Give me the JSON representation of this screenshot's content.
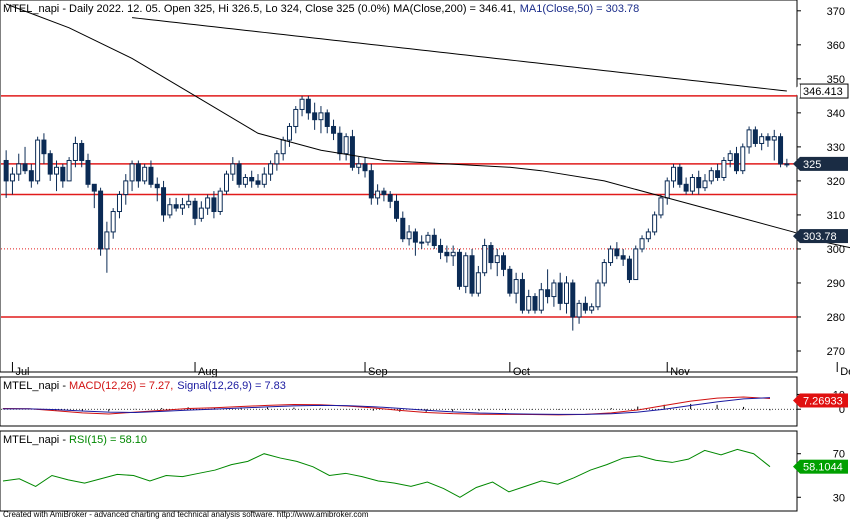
{
  "price_pane": {
    "symbol": "MTEL_napi",
    "info_prefix": " - Daily 2022. 12. 05. Open 325, Hi 326.5, Lo 324, Close 325 (0.0%) ",
    "ma200_text": "MA(Close,200) = 346.41,",
    "ma50_text": "MA1(Close,50) = 303.78",
    "y_ticks": [
      270,
      280,
      290,
      300,
      310,
      320,
      330,
      340,
      350,
      360,
      370
    ],
    "last_close_label": "325",
    "ma50_label": "303.78",
    "level_label": "346.413"
  },
  "macd_pane": {
    "symbol": "MTEL_napi",
    "macd_text": "MACD(12,26) = 7.27,",
    "signal_text": "Signal(12,26,9) = 7.83",
    "y_ticks": [
      0,
      10
    ],
    "value_label": "7.26933"
  },
  "rsi_pane": {
    "symbol": "MTEL_napi",
    "rsi_text": "RSI(15) = 58.10",
    "y_ticks": [
      30,
      70
    ],
    "value_label": "58.1044"
  },
  "x_axis_labels": [
    "Jul",
    "Aug",
    "Sep",
    "Oct",
    "Nov",
    "Dec"
  ],
  "footer": "Created with AmiBroker - advanced charting and technical analysis software. http://www.amibroker.com",
  "colors": {
    "up": "#ffffff",
    "down": "#0b2b55",
    "ma": "#000000",
    "level": "#e11b1b",
    "macd": "#d01010",
    "signal": "#1a1aa0",
    "rsi": "#008800",
    "label_red": "#e01010",
    "label_green": "#00a000",
    "label_dark": "#1a2c44"
  },
  "chart_data": [
    {
      "type": "candlestick",
      "title": "MTEL_napi - Daily 2022. 12. 05. Open 325, Hi 326.5, Lo 324, Close 325 (0.0%)",
      "ylim": [
        265,
        372
      ],
      "x_labels": [
        "Jul",
        "Aug",
        "Sep",
        "Oct",
        "Nov",
        "Dec"
      ],
      "candles": [
        {
          "o": 326,
          "h": 329,
          "l": 315,
          "c": 320
        },
        {
          "o": 320,
          "h": 324,
          "l": 316,
          "c": 322
        },
        {
          "o": 322,
          "h": 328,
          "l": 320,
          "c": 325
        },
        {
          "o": 325,
          "h": 330,
          "l": 322,
          "c": 323
        },
        {
          "o": 323,
          "h": 325,
          "l": 318,
          "c": 320
        },
        {
          "o": 320,
          "h": 333,
          "l": 319,
          "c": 332
        },
        {
          "o": 332,
          "h": 334,
          "l": 325,
          "c": 328
        },
        {
          "o": 328,
          "h": 329,
          "l": 320,
          "c": 322
        },
        {
          "o": 322,
          "h": 326,
          "l": 317,
          "c": 324
        },
        {
          "o": 324,
          "h": 325,
          "l": 318,
          "c": 320
        },
        {
          "o": 320,
          "h": 327,
          "l": 320,
          "c": 326
        },
        {
          "o": 326,
          "h": 333,
          "l": 324,
          "c": 331
        },
        {
          "o": 331,
          "h": 332,
          "l": 324,
          "c": 326
        },
        {
          "o": 326,
          "h": 328,
          "l": 318,
          "c": 319
        },
        {
          "o": 319,
          "h": 319,
          "l": 312,
          "c": 317
        },
        {
          "o": 317,
          "h": 318,
          "l": 298,
          "c": 300
        },
        {
          "o": 300,
          "h": 308,
          "l": 293,
          "c": 305
        },
        {
          "o": 305,
          "h": 312,
          "l": 303,
          "c": 311
        },
        {
          "o": 311,
          "h": 317,
          "l": 309,
          "c": 316
        },
        {
          "o": 316,
          "h": 322,
          "l": 313,
          "c": 320
        },
        {
          "o": 320,
          "h": 326,
          "l": 317,
          "c": 325
        },
        {
          "o": 325,
          "h": 326,
          "l": 318,
          "c": 320
        },
        {
          "o": 320,
          "h": 325,
          "l": 319,
          "c": 324
        },
        {
          "o": 324,
          "h": 326,
          "l": 318,
          "c": 319
        },
        {
          "o": 319,
          "h": 321,
          "l": 314,
          "c": 318
        },
        {
          "o": 318,
          "h": 320,
          "l": 308,
          "c": 310
        },
        {
          "o": 310,
          "h": 315,
          "l": 309,
          "c": 313
        },
        {
          "o": 313,
          "h": 315,
          "l": 311,
          "c": 312
        },
        {
          "o": 312,
          "h": 315,
          "l": 310,
          "c": 313
        },
        {
          "o": 313,
          "h": 316,
          "l": 312,
          "c": 314
        },
        {
          "o": 314,
          "h": 315,
          "l": 307,
          "c": 309
        },
        {
          "o": 309,
          "h": 314,
          "l": 308,
          "c": 312
        },
        {
          "o": 312,
          "h": 316,
          "l": 310,
          "c": 315
        },
        {
          "o": 315,
          "h": 317,
          "l": 309,
          "c": 311
        },
        {
          "o": 311,
          "h": 318,
          "l": 310,
          "c": 317
        },
        {
          "o": 317,
          "h": 323,
          "l": 316,
          "c": 322
        },
        {
          "o": 322,
          "h": 327,
          "l": 320,
          "c": 325
        },
        {
          "o": 325,
          "h": 326,
          "l": 318,
          "c": 319
        },
        {
          "o": 319,
          "h": 322,
          "l": 318,
          "c": 321
        },
        {
          "o": 321,
          "h": 323,
          "l": 318,
          "c": 320
        },
        {
          "o": 320,
          "h": 322,
          "l": 318,
          "c": 319
        },
        {
          "o": 319,
          "h": 324,
          "l": 318,
          "c": 322
        },
        {
          "o": 322,
          "h": 326,
          "l": 320,
          "c": 325
        },
        {
          "o": 325,
          "h": 329,
          "l": 323,
          "c": 328
        },
        {
          "o": 328,
          "h": 333,
          "l": 326,
          "c": 332
        },
        {
          "o": 332,
          "h": 337,
          "l": 330,
          "c": 336
        },
        {
          "o": 336,
          "h": 342,
          "l": 334,
          "c": 341
        },
        {
          "o": 341,
          "h": 345,
          "l": 339,
          "c": 344
        },
        {
          "o": 344,
          "h": 345,
          "l": 338,
          "c": 340
        },
        {
          "o": 340,
          "h": 343,
          "l": 335,
          "c": 338
        },
        {
          "o": 338,
          "h": 342,
          "l": 334,
          "c": 340
        },
        {
          "o": 340,
          "h": 341,
          "l": 334,
          "c": 336
        },
        {
          "o": 336,
          "h": 338,
          "l": 332,
          "c": 334
        },
        {
          "o": 334,
          "h": 336,
          "l": 326,
          "c": 328
        },
        {
          "o": 328,
          "h": 334,
          "l": 326,
          "c": 333
        },
        {
          "o": 333,
          "h": 335,
          "l": 323,
          "c": 324
        },
        {
          "o": 324,
          "h": 327,
          "l": 322,
          "c": 325
        },
        {
          "o": 325,
          "h": 327,
          "l": 321,
          "c": 323
        },
        {
          "o": 323,
          "h": 325,
          "l": 313,
          "c": 315
        },
        {
          "o": 315,
          "h": 319,
          "l": 313,
          "c": 317
        },
        {
          "o": 317,
          "h": 318,
          "l": 314,
          "c": 316
        },
        {
          "o": 316,
          "h": 317,
          "l": 312,
          "c": 314
        },
        {
          "o": 314,
          "h": 316,
          "l": 308,
          "c": 309
        },
        {
          "o": 309,
          "h": 311,
          "l": 302,
          "c": 303
        },
        {
          "o": 303,
          "h": 307,
          "l": 301,
          "c": 305
        },
        {
          "o": 305,
          "h": 306,
          "l": 298,
          "c": 302
        },
        {
          "o": 302,
          "h": 304,
          "l": 300,
          "c": 302
        },
        {
          "o": 302,
          "h": 305,
          "l": 301,
          "c": 304
        },
        {
          "o": 304,
          "h": 306,
          "l": 300,
          "c": 301
        },
        {
          "o": 301,
          "h": 303,
          "l": 297,
          "c": 299
        },
        {
          "o": 299,
          "h": 301,
          "l": 296,
          "c": 298
        },
        {
          "o": 298,
          "h": 301,
          "l": 295,
          "c": 299
        },
        {
          "o": 299,
          "h": 300,
          "l": 288,
          "c": 289
        },
        {
          "o": 289,
          "h": 299,
          "l": 287,
          "c": 298
        },
        {
          "o": 298,
          "h": 300,
          "l": 286,
          "c": 287
        },
        {
          "o": 287,
          "h": 295,
          "l": 286,
          "c": 293
        },
        {
          "o": 293,
          "h": 303,
          "l": 292,
          "c": 301
        },
        {
          "o": 301,
          "h": 302,
          "l": 294,
          "c": 296
        },
        {
          "o": 296,
          "h": 300,
          "l": 292,
          "c": 298
        },
        {
          "o": 298,
          "h": 299,
          "l": 292,
          "c": 294
        },
        {
          "o": 294,
          "h": 295,
          "l": 286,
          "c": 287
        },
        {
          "o": 287,
          "h": 293,
          "l": 284,
          "c": 291
        },
        {
          "o": 291,
          "h": 293,
          "l": 281,
          "c": 282
        },
        {
          "o": 282,
          "h": 288,
          "l": 281,
          "c": 286
        },
        {
          "o": 286,
          "h": 287,
          "l": 281,
          "c": 282
        },
        {
          "o": 282,
          "h": 290,
          "l": 281,
          "c": 288
        },
        {
          "o": 288,
          "h": 294,
          "l": 284,
          "c": 286
        },
        {
          "o": 286,
          "h": 291,
          "l": 283,
          "c": 290
        },
        {
          "o": 290,
          "h": 293,
          "l": 282,
          "c": 284
        },
        {
          "o": 284,
          "h": 292,
          "l": 281,
          "c": 290
        },
        {
          "o": 290,
          "h": 291,
          "l": 276,
          "c": 280
        },
        {
          "o": 280,
          "h": 285,
          "l": 278,
          "c": 284
        },
        {
          "o": 284,
          "h": 286,
          "l": 281,
          "c": 282
        },
        {
          "o": 282,
          "h": 284,
          "l": 281,
          "c": 283
        },
        {
          "o": 283,
          "h": 291,
          "l": 282,
          "c": 290
        },
        {
          "o": 290,
          "h": 297,
          "l": 289,
          "c": 296
        },
        {
          "o": 296,
          "h": 301,
          "l": 295,
          "c": 300
        },
        {
          "o": 300,
          "h": 302,
          "l": 297,
          "c": 298
        },
        {
          "o": 298,
          "h": 300,
          "l": 295,
          "c": 297
        },
        {
          "o": 297,
          "h": 298,
          "l": 290,
          "c": 291
        },
        {
          "o": 291,
          "h": 301,
          "l": 291,
          "c": 300
        },
        {
          "o": 300,
          "h": 304,
          "l": 299,
          "c": 303
        },
        {
          "o": 303,
          "h": 306,
          "l": 302,
          "c": 305
        },
        {
          "o": 305,
          "h": 311,
          "l": 304,
          "c": 310
        },
        {
          "o": 310,
          "h": 316,
          "l": 309,
          "c": 315
        },
        {
          "o": 315,
          "h": 321,
          "l": 313,
          "c": 320
        },
        {
          "o": 320,
          "h": 325,
          "l": 318,
          "c": 324
        },
        {
          "o": 324,
          "h": 325,
          "l": 318,
          "c": 319
        },
        {
          "o": 319,
          "h": 321,
          "l": 316,
          "c": 317
        },
        {
          "o": 317,
          "h": 322,
          "l": 316,
          "c": 321
        },
        {
          "o": 321,
          "h": 323,
          "l": 316,
          "c": 318
        },
        {
          "o": 318,
          "h": 322,
          "l": 317,
          "c": 320
        },
        {
          "o": 320,
          "h": 324,
          "l": 319,
          "c": 323
        },
        {
          "o": 323,
          "h": 325,
          "l": 320,
          "c": 321
        },
        {
          "o": 321,
          "h": 327,
          "l": 320,
          "c": 326
        },
        {
          "o": 326,
          "h": 329,
          "l": 324,
          "c": 328
        },
        {
          "o": 328,
          "h": 330,
          "l": 322,
          "c": 323
        },
        {
          "o": 323,
          "h": 331,
          "l": 322,
          "c": 330
        },
        {
          "o": 330,
          "h": 336,
          "l": 328,
          "c": 335
        },
        {
          "o": 335,
          "h": 336,
          "l": 330,
          "c": 331
        },
        {
          "o": 331,
          "h": 334,
          "l": 329,
          "c": 333
        },
        {
          "o": 333,
          "h": 334,
          "l": 330,
          "c": 332
        },
        {
          "o": 332,
          "h": 335,
          "l": 326,
          "c": 333
        },
        {
          "o": 333,
          "h": 334,
          "l": 324,
          "c": 325
        },
        {
          "o": 325,
          "h": 326.5,
          "l": 324,
          "c": 325
        }
      ],
      "ma200": [
        368,
        346.41
      ],
      "ma50": [
        [
          0,
          372
        ],
        [
          10,
          365
        ],
        [
          20,
          356
        ],
        [
          30,
          345
        ],
        [
          40,
          334
        ],
        [
          50,
          329
        ],
        [
          60,
          326
        ],
        [
          70,
          325
        ],
        [
          80,
          324
        ],
        [
          85,
          323
        ],
        [
          95,
          320
        ],
        [
          105,
          315
        ],
        [
          115,
          310
        ],
        [
          125,
          305
        ],
        [
          130,
          302
        ],
        [
          135,
          300
        ],
        [
          145,
          299.5
        ],
        [
          150,
          300.5
        ],
        [
          156,
          303.78
        ]
      ],
      "horizontal_levels": [
        345,
        325,
        316,
        280
      ],
      "dotted_level": 300
    },
    {
      "type": "line",
      "title": "MTEL_napi - MACD(12,26) = 7.27, Signal(12,26,9) = 7.83",
      "series": [
        {
          "name": "MACD(12,26)",
          "values": [
            0.5,
            0.3,
            -1.0,
            -2.5,
            -3.2,
            -2.0,
            -0.8,
            0.5,
            1.0,
            1.8,
            2.6,
            3.2,
            3.0,
            2.2,
            0.9,
            -0.8,
            -2.2,
            -3.0,
            -3.4,
            -3.5,
            -3.6,
            -3.8,
            -3.5,
            -2.5,
            -0.5,
            2.5,
            5.5,
            7.5,
            8.3,
            7.27
          ]
        },
        {
          "name": "Signal(12,26,9)",
          "values": [
            0.2,
            0.2,
            -0.3,
            -1.2,
            -2.0,
            -2.2,
            -1.5,
            -0.6,
            0.1,
            0.8,
            1.6,
            2.3,
            2.6,
            2.4,
            1.7,
            0.6,
            -0.7,
            -1.8,
            -2.6,
            -3.0,
            -3.3,
            -3.5,
            -3.5,
            -3.1,
            -2.0,
            0.0,
            2.5,
            5.0,
            7.0,
            7.83
          ]
        }
      ],
      "ylim": [
        -10,
        13
      ]
    },
    {
      "type": "line",
      "title": "MTEL_napi - RSI(15) = 58.10",
      "series": [
        {
          "name": "RSI(15)",
          "values": [
            45,
            47,
            40,
            50,
            46,
            43,
            47,
            51,
            50,
            45,
            50,
            49,
            52,
            55,
            60,
            63,
            70,
            66,
            63,
            58,
            50,
            52,
            49,
            45,
            43,
            40,
            44,
            38,
            30,
            39,
            44,
            35,
            40,
            45,
            42,
            48,
            55,
            60,
            66,
            68,
            64,
            62,
            65,
            73,
            69,
            74,
            70,
            58.1
          ]
        }
      ],
      "ylim": [
        22,
        78
      ]
    }
  ]
}
